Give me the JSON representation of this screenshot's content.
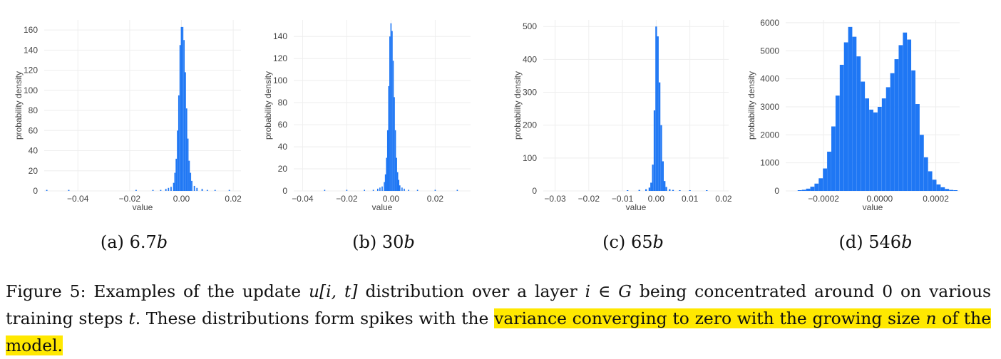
{
  "figure": {
    "caption": {
      "label": "Figure 5:",
      "part1": "Examples of the update",
      "math_u": "u",
      "math_idx": "[i, t]",
      "part2": "distribution over a layer",
      "math_layer": "i ∈ G",
      "part3": "being concentrated around 0 on various training steps",
      "math_t": "t",
      "part4": ". These distributions form spikes with the",
      "highlight_a": "variance converging to zero with the growing size",
      "math_n": "n",
      "highlight_b": "of the model.",
      "highlight_color": "#ffe800"
    }
  },
  "panels": [
    {
      "label": "(a)",
      "size": "6.7",
      "unit": "b"
    },
    {
      "label": "(b)",
      "size": "30",
      "unit": "b"
    },
    {
      "label": "(c)",
      "size": "65",
      "unit": "b"
    },
    {
      "label": "(d)",
      "size": "546",
      "unit": "b"
    }
  ],
  "bar_color": "#1f77f4",
  "chart_data": [
    {
      "type": "bar",
      "xlabel": "value",
      "ylabel": "probability density",
      "xlim": [
        -0.053,
        0.023
      ],
      "ylim": [
        0,
        170
      ],
      "xticks": [
        -0.04,
        -0.02,
        0.0,
        0.02
      ],
      "xtick_labels": [
        "−0.04",
        "−0.02",
        "0.00",
        "0.02"
      ],
      "yticks": [
        0,
        20,
        40,
        60,
        80,
        100,
        120,
        140,
        160
      ],
      "ytick_labels": [
        "0",
        "20",
        "40",
        "60",
        "80",
        "100",
        "120",
        "140",
        "160"
      ],
      "grid": true,
      "bins": {
        "x": [
          -0.052,
          -0.0435,
          -0.0175,
          -0.011,
          -0.008,
          -0.006,
          -0.005,
          -0.004,
          -0.003,
          -0.0025,
          -0.002,
          -0.0015,
          -0.001,
          -0.0005,
          0.0,
          0.0005,
          0.001,
          0.0015,
          0.002,
          0.0025,
          0.003,
          0.0035,
          0.004,
          0.005,
          0.006,
          0.008,
          0.01,
          0.013,
          0.0185
        ],
        "y": [
          1,
          1,
          1,
          1,
          1,
          2,
          3,
          4,
          8,
          18,
          32,
          60,
          95,
          145,
          163,
          163,
          150,
          118,
          82,
          52,
          30,
          18,
          10,
          5,
          3,
          2,
          1,
          1,
          1
        ]
      }
    },
    {
      "type": "bar",
      "xlabel": "value",
      "ylabel": "probability density",
      "xlim": [
        -0.044,
        0.036
      ],
      "ylim": [
        0,
        155
      ],
      "xticks": [
        -0.04,
        -0.02,
        0.0,
        0.02
      ],
      "xtick_labels": [
        "−0.04",
        "−0.02",
        "0.00",
        "0.02"
      ],
      "yticks": [
        0,
        20,
        40,
        60,
        80,
        100,
        120,
        140
      ],
      "ytick_labels": [
        "0",
        "20",
        "40",
        "60",
        "80",
        "100",
        "120",
        "140"
      ],
      "grid": true,
      "bins": {
        "x": [
          -0.03,
          -0.02,
          -0.012,
          -0.008,
          -0.006,
          -0.005,
          -0.004,
          -0.003,
          -0.0025,
          -0.002,
          -0.0015,
          -0.001,
          -0.0005,
          0.0,
          0.0005,
          0.001,
          0.0015,
          0.002,
          0.0025,
          0.003,
          0.0035,
          0.004,
          0.005,
          0.006,
          0.008,
          0.012,
          0.02,
          0.03
        ],
        "y": [
          1,
          1,
          1,
          1,
          2,
          3,
          4,
          8,
          15,
          30,
          55,
          95,
          140,
          152,
          145,
          118,
          85,
          55,
          30,
          17,
          10,
          5,
          3,
          2,
          1,
          1,
          1,
          1
        ]
      }
    },
    {
      "type": "bar",
      "xlabel": "value",
      "ylabel": "probability density",
      "xlim": [
        -0.0335,
        0.0215
      ],
      "ylim": [
        0,
        520
      ],
      "xticks": [
        -0.03,
        -0.02,
        -0.01,
        0.0,
        0.01,
        0.02
      ],
      "xtick_labels": [
        "−0.03",
        "−0.02",
        "−0.01",
        "0.00",
        "0.01",
        "0.02"
      ],
      "yticks": [
        0,
        100,
        200,
        300,
        400,
        500
      ],
      "ytick_labels": [
        "0",
        "100",
        "200",
        "300",
        "400",
        "500"
      ],
      "grid": true,
      "bins": {
        "x": [
          -0.0085,
          -0.005,
          -0.003,
          -0.002,
          -0.0015,
          -0.001,
          -0.0005,
          0.0,
          0.0005,
          0.001,
          0.0015,
          0.002,
          0.0025,
          0.003,
          0.004,
          0.005,
          0.007,
          0.01,
          0.015
        ],
        "y": [
          2,
          3,
          5,
          10,
          25,
          80,
          245,
          500,
          470,
          330,
          200,
          90,
          30,
          12,
          5,
          3,
          2,
          1,
          1
        ]
      }
    },
    {
      "type": "bar",
      "xlabel": "value",
      "ylabel": "probability density",
      "xlim": [
        -0.000335,
        0.000285
      ],
      "ylim": [
        0,
        6100
      ],
      "xticks": [
        -0.0002,
        0.0,
        0.0002
      ],
      "xtick_labels": [
        "−0.0002",
        "0.0000",
        "0.0002"
      ],
      "yticks": [
        0,
        1000,
        2000,
        3000,
        4000,
        5000,
        6000
      ],
      "ytick_labels": [
        "0",
        "1000",
        "2000",
        "3000",
        "4000",
        "5000",
        "6000"
      ],
      "grid": true,
      "bins": {
        "x": [
          -0.000285,
          -0.00027,
          -0.000255,
          -0.00024,
          -0.000225,
          -0.00021,
          -0.000195,
          -0.00018,
          -0.000165,
          -0.00015,
          -0.000135,
          -0.00012,
          -0.000105,
          -9e-05,
          -7.5e-05,
          -6e-05,
          -4.5e-05,
          -3e-05,
          -1.5e-05,
          0.0,
          1.5e-05,
          3e-05,
          4.5e-05,
          6e-05,
          7.5e-05,
          9e-05,
          0.000105,
          0.00012,
          0.000135,
          0.00015,
          0.000165,
          0.00018,
          0.000195,
          0.00021,
          0.000225,
          0.00024,
          0.000255,
          0.00027
        ],
        "y": [
          20,
          40,
          80,
          150,
          260,
          450,
          800,
          1400,
          2300,
          3400,
          4500,
          5300,
          5850,
          5500,
          4800,
          3900,
          3300,
          2900,
          2800,
          3000,
          3300,
          3700,
          4200,
          4700,
          5200,
          5650,
          5400,
          4300,
          3100,
          2000,
          1200,
          700,
          400,
          230,
          130,
          70,
          35,
          15
        ]
      }
    }
  ]
}
